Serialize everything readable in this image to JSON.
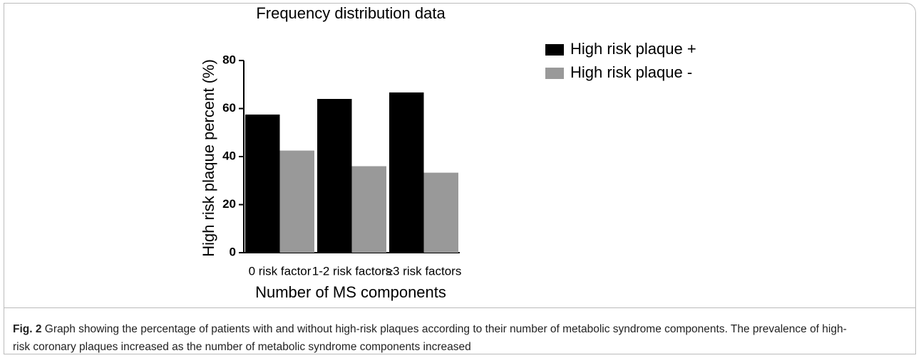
{
  "chart_data": {
    "type": "bar",
    "title": "Frequency distribution data",
    "x_label": "Number of MS components",
    "y_label": "High risk plaque percent (%)",
    "categories": [
      "0 risk factor",
      "1-2 risk factors",
      "≥3 risk factors"
    ],
    "series": [
      {
        "name": "High risk plaque +",
        "color": "#000000",
        "values": [
          57.5,
          64,
          66.7
        ]
      },
      {
        "name": "High risk plaque -",
        "color": "#999999",
        "values": [
          42.5,
          36,
          33.3
        ]
      }
    ],
    "ylim": [
      0,
      80
    ],
    "yticks": [
      0,
      20,
      40,
      60,
      80
    ],
    "grid": false,
    "legend": "right"
  },
  "caption": {
    "label": "Fig. 2",
    "text": "Graph showing the percentage of patients with and without high-risk plaques according to their number of metabolic syndrome components. The prevalence of high-risk coronary plaques increased as the number of metabolic syndrome components increased"
  }
}
